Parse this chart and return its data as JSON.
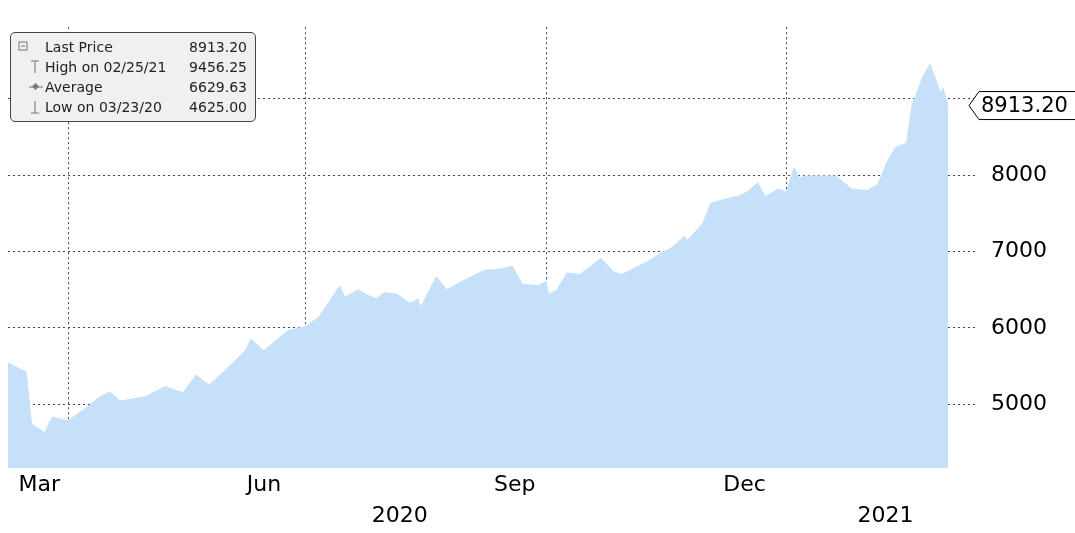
{
  "chart_data": {
    "type": "area",
    "x": [
      "2020-03-09",
      "2020-03-16",
      "2020-03-18",
      "2020-03-23",
      "2020-03-26",
      "2020-04-01",
      "2020-04-07",
      "2020-04-13",
      "2020-04-17",
      "2020-04-21",
      "2020-05-01",
      "2020-05-08",
      "2020-05-15",
      "2020-05-20",
      "2020-05-25",
      "2020-06-01",
      "2020-06-08",
      "2020-06-10",
      "2020-06-15",
      "2020-06-24",
      "2020-07-01",
      "2020-07-06",
      "2020-07-14",
      "2020-07-16",
      "2020-07-21",
      "2020-07-24",
      "2020-07-28",
      "2020-07-31",
      "2020-08-05",
      "2020-08-10",
      "2020-08-13",
      "2020-08-14",
      "2020-08-20",
      "2020-08-24",
      "2020-08-31",
      "2020-09-04",
      "2020-09-08",
      "2020-09-11",
      "2020-09-15",
      "2020-09-18",
      "2020-09-22",
      "2020-09-28",
      "2020-10-01",
      "2020-10-02",
      "2020-10-05",
      "2020-10-09",
      "2020-10-14",
      "2020-10-22",
      "2020-10-27",
      "2020-10-30",
      "2020-11-09",
      "2020-11-13",
      "2020-11-18",
      "2020-11-23",
      "2020-11-24",
      "2020-11-30",
      "2020-12-03",
      "2020-12-09",
      "2020-12-14",
      "2020-12-17",
      "2020-12-21",
      "2020-12-24",
      "2020-12-29",
      "2021-01-01",
      "2021-01-04",
      "2021-01-06",
      "2021-01-08",
      "2021-01-15",
      "2021-01-20",
      "2021-01-26",
      "2021-02-01",
      "2021-02-05",
      "2021-02-09",
      "2021-02-12",
      "2021-02-16",
      "2021-02-18",
      "2021-02-22",
      "2021-02-25",
      "2021-03-01",
      "2021-03-02",
      "2021-03-03",
      "2021-03-04"
    ],
    "series": [
      {
        "name": "Last Price",
        "color": "#c6e0fa",
        "values": [
          5540,
          5420,
          4740,
          4625,
          4830,
          4780,
          4930,
          5090,
          5160,
          5040,
          5100,
          5230,
          5150,
          5380,
          5250,
          5470,
          5710,
          5850,
          5700,
          5960,
          6020,
          6140,
          6550,
          6400,
          6500,
          6440,
          6380,
          6460,
          6440,
          6320,
          6380,
          6270,
          6670,
          6500,
          6630,
          6700,
          6760,
          6760,
          6780,
          6810,
          6570,
          6550,
          6610,
          6440,
          6490,
          6720,
          6700,
          6910,
          6730,
          6700,
          6870,
          6960,
          7050,
          7200,
          7140,
          7370,
          7630,
          7690,
          7730,
          7780,
          7900,
          7720,
          7820,
          7780,
          8100,
          7960,
          7990,
          7990,
          7990,
          7820,
          7800,
          7880,
          8210,
          8370,
          8420,
          8900,
          9270,
          9456.25,
          9080,
          9140,
          9020,
          8913.2
        ]
      }
    ],
    "xlim": [
      "2020-03-09",
      "2021-03-15"
    ],
    "xticks": [
      {
        "value": "2020-03-21",
        "label": "Mar"
      },
      {
        "value": "2020-04-01",
        "label": null
      },
      {
        "value": "2020-06-15",
        "label": "Jun"
      },
      {
        "value": "2020-07-01",
        "label": null
      },
      {
        "value": "2020-09-19",
        "label": "Sep"
      },
      {
        "value": "2020-10-01",
        "label": null
      },
      {
        "value": "2020-12-16",
        "label": "Dec"
      },
      {
        "value": "2021-01-01",
        "label": null
      }
    ],
    "ylim": [
      4160,
      9940
    ],
    "yticks": [
      5000,
      6000,
      7000,
      8000,
      {
        "value": 9000,
        "label": null
      }
    ],
    "grid": true,
    "legend": "top left",
    "x2lim": [
      "2020-03-09",
      "2021-03-15"
    ],
    "x2ticks": [
      {
        "value": "2020-08-06",
        "label": "2020"
      },
      {
        "value": "2021-02-08",
        "label": "2021"
      }
    ],
    "annotations": [
      "8913.20",
      "High on 02/25/21 9456.25",
      "Average 6629.63",
      "Low on 03/23/20 4625.00"
    ]
  }
}
